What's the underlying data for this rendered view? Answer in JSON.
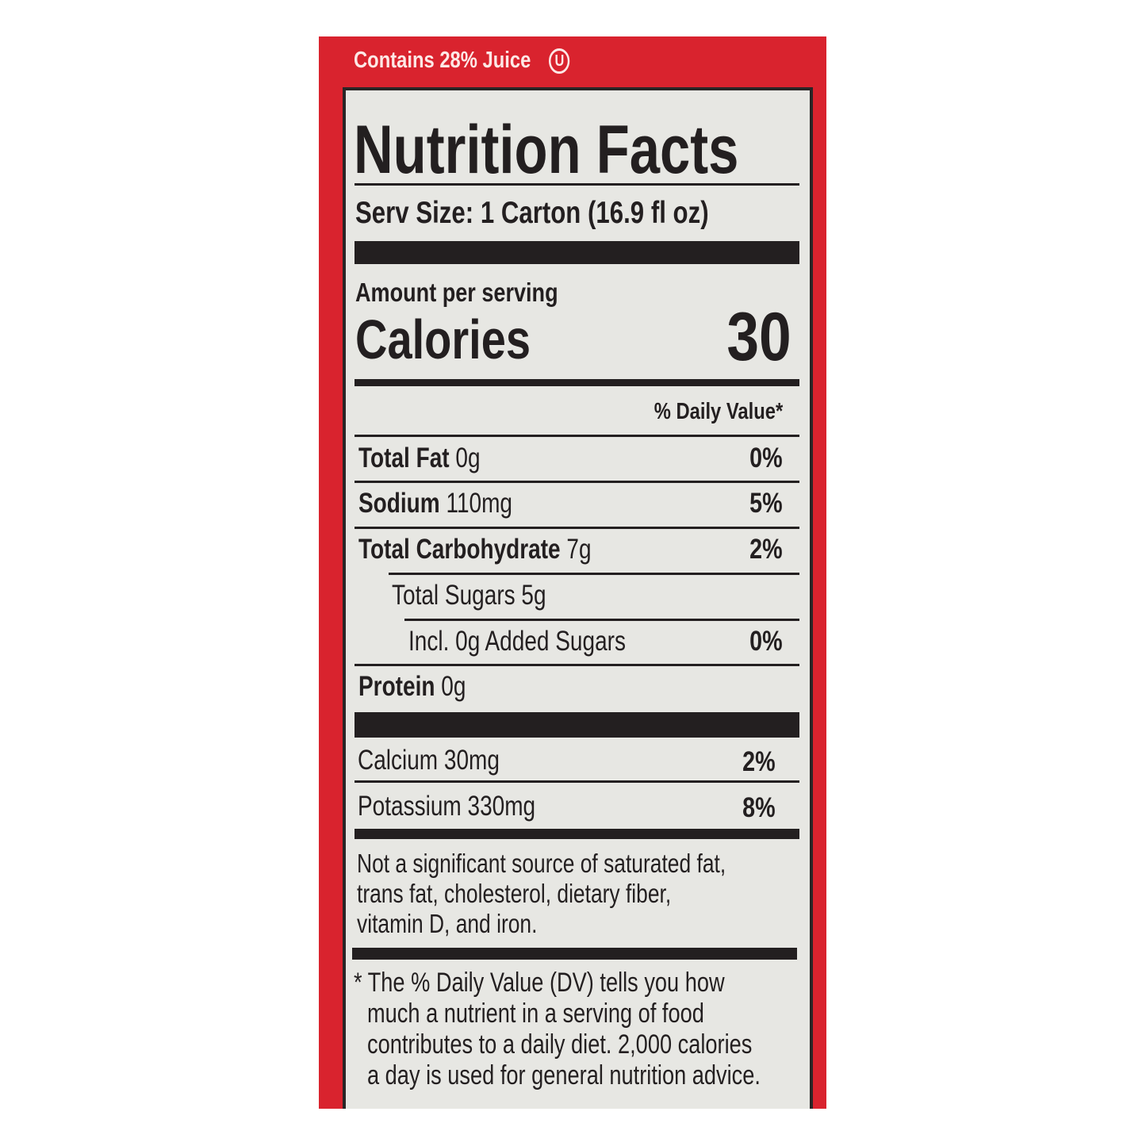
{
  "header": {
    "juice_claim": "Contains 28% Juice",
    "kosher_symbol": "U"
  },
  "label": {
    "title": "Nutrition Facts",
    "serving_size": "Serv Size: 1 Carton (16.9 fl oz)",
    "amount_per_serving": "Amount per serving",
    "calories_label": "Calories",
    "calories_value": "30",
    "daily_value_header": "% Daily Value*",
    "nutrients": [
      {
        "name": "Total Fat",
        "amount": "0g",
        "dv": "0%"
      },
      {
        "name": "Sodium",
        "amount": "110mg",
        "dv": "5%"
      },
      {
        "name": "Total Carbohydrate",
        "amount": "7g",
        "dv": "2%"
      },
      {
        "name": "Total Sugars 5g",
        "amount": "",
        "dv": ""
      },
      {
        "name": "Incl. 0g Added Sugars",
        "amount": "",
        "dv": "0%"
      },
      {
        "name": "Protein",
        "amount": "0g",
        "dv": ""
      }
    ],
    "minerals": [
      {
        "name": "Calcium 30mg",
        "dv": "2%"
      },
      {
        "name": "Potassium 330mg",
        "dv": "8%"
      }
    ],
    "not_significant": [
      "Not a significant source of saturated fat,",
      "trans fat, cholesterol, dietary fiber,",
      "vitamin D, and iron."
    ],
    "footnote": [
      "* The % Daily Value (DV) tells you how",
      "much a nutrient in a serving of food",
      "contributes to a daily diet. 2,000 calories",
      "a day is used for general nutrition advice."
    ]
  },
  "colors": {
    "panel": "#d9232e",
    "label_bg": "#e7e7e3",
    "ink": "#231f20"
  }
}
